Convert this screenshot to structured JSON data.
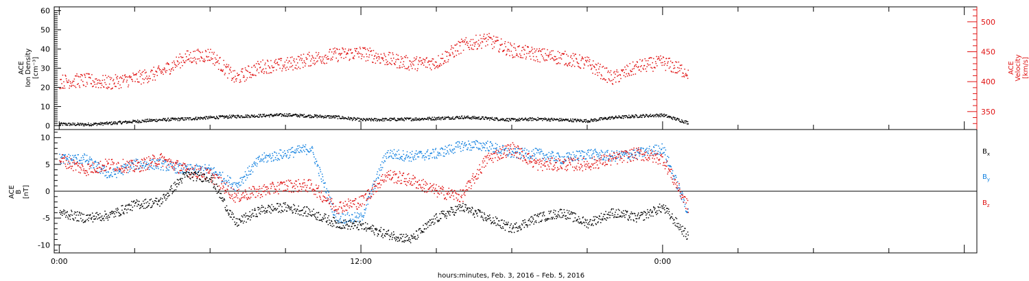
{
  "chart_data": [
    {
      "type": "scatter",
      "panel": "top",
      "left_axis_label": [
        "ACE",
        "Ion Density",
        "[cm⁻³]"
      ],
      "right_axis_label": [
        "ACE",
        "Velocity",
        "[km/s]"
      ],
      "left_ylim": [
        -2,
        62
      ],
      "right_ylim": [
        320,
        525
      ],
      "left_yticks": [
        0,
        10,
        20,
        30,
        40,
        50,
        60
      ],
      "right_yticks": [
        350,
        400,
        450,
        500
      ],
      "series": [
        {
          "axis": "left",
          "color": "#000000",
          "x": [
            0,
            1,
            2,
            3,
            4,
            5,
            6,
            7,
            8,
            9,
            10,
            11,
            12,
            13,
            14,
            15,
            16,
            17,
            18,
            19,
            20,
            21,
            22,
            23,
            24,
            25
          ],
          "values": [
            0.8,
            0.6,
            1.2,
            2.2,
            3.0,
            3.5,
            4.2,
            4.8,
            5.2,
            5.6,
            5.0,
            4.5,
            3.0,
            3.2,
            3.4,
            3.8,
            4.4,
            3.8,
            3.0,
            3.5,
            3.0,
            2.5,
            4.2,
            5.0,
            5.5,
            1.5
          ]
        },
        {
          "axis": "right",
          "color": "#e01010",
          "x": [
            0,
            1,
            2,
            3,
            4,
            5,
            6,
            7,
            8,
            9,
            10,
            11,
            12,
            13,
            14,
            15,
            16,
            17,
            18,
            19,
            20,
            21,
            22,
            23,
            24,
            25
          ],
          "values": [
            400,
            402,
            398,
            405,
            415,
            440,
            445,
            405,
            425,
            428,
            438,
            445,
            448,
            438,
            430,
            432,
            460,
            470,
            452,
            445,
            440,
            430,
            405,
            425,
            432,
            415
          ]
        }
      ]
    },
    {
      "type": "scatter",
      "panel": "bottom",
      "left_axis_label": [
        "ACE",
        "B",
        "[nT]"
      ],
      "ylim": [
        -11.5,
        11.5
      ],
      "yticks": [
        -10,
        -5,
        0,
        5,
        10
      ],
      "xticks": [
        "0:00",
        "12:00",
        "0:00"
      ],
      "xtick_hours": [
        0,
        12,
        24
      ],
      "xlim": [
        -0.2,
        36.5
      ],
      "series": [
        {
          "name": "Bx",
          "color": "#000000",
          "x": [
            0,
            1,
            2,
            3,
            4,
            5,
            6,
            7,
            8,
            9,
            10,
            11,
            12,
            13,
            14,
            15,
            16,
            17,
            18,
            19,
            20,
            21,
            22,
            23,
            24,
            25
          ],
          "values": [
            -4,
            -5,
            -4.5,
            -2.5,
            -2,
            3,
            2.5,
            -6,
            -3.5,
            -3,
            -4,
            -6,
            -6.5,
            -8,
            -9,
            -5,
            -3,
            -5,
            -7,
            -5,
            -4,
            -6,
            -4,
            -5,
            -3,
            -8.5
          ]
        },
        {
          "name": "By",
          "color": "#1080e0",
          "x": [
            0,
            1,
            2,
            3,
            4,
            5,
            6,
            7,
            8,
            9,
            10,
            11,
            12,
            13,
            14,
            15,
            16,
            17,
            18,
            19,
            20,
            21,
            22,
            23,
            24,
            25
          ],
          "values": [
            6,
            6,
            3,
            5,
            5,
            4,
            4,
            1,
            6,
            7,
            8,
            -5,
            -5,
            7,
            6.5,
            7,
            8.5,
            8.5,
            7,
            7,
            6,
            7,
            6.5,
            7,
            8,
            -4
          ]
        },
        {
          "name": "Bz",
          "color": "#e01010",
          "x": [
            0,
            1,
            2,
            3,
            4,
            5,
            6,
            7,
            8,
            9,
            10,
            11,
            12,
            13,
            14,
            15,
            16,
            17,
            18,
            19,
            20,
            21,
            22,
            23,
            24,
            25
          ],
          "values": [
            6,
            4,
            5,
            4.5,
            6,
            4,
            3,
            -1,
            0,
            1,
            1,
            -3,
            -2,
            3,
            2,
            0,
            -1,
            6,
            8,
            5,
            5,
            5,
            6,
            7,
            6,
            -3
          ]
        }
      ],
      "legend_placement": "right"
    }
  ],
  "footer": {
    "xlabel": "hours:minutes, Feb.  3, 2016 – Feb.  5, 2016"
  },
  "legend": {
    "bx_label": "B",
    "bx_sub": "x",
    "by_label": "B",
    "by_sub": "y",
    "bz_label": "B",
    "bz_sub": "z"
  }
}
